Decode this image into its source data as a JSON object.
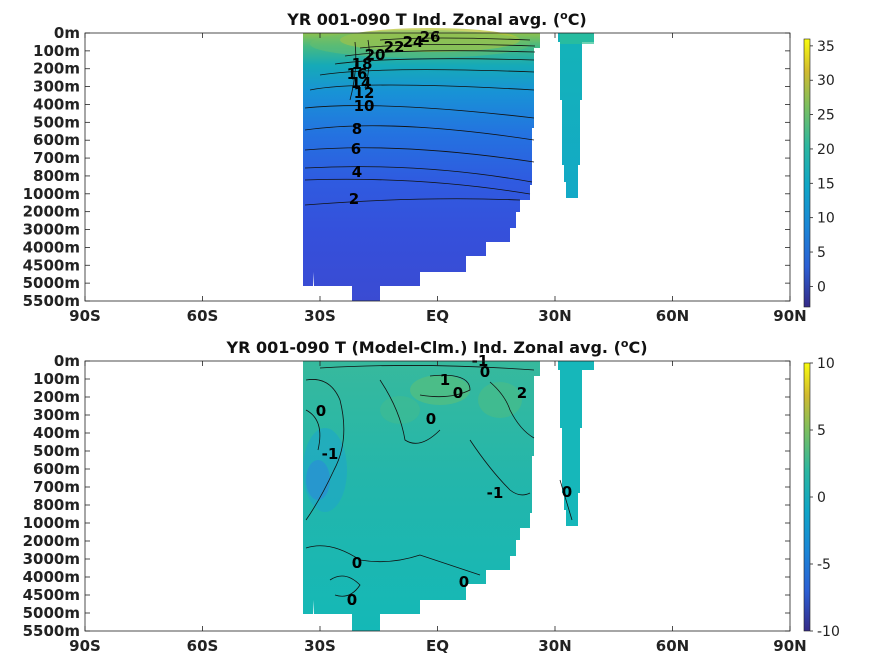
{
  "chart_data": [
    {
      "type": "heatmap",
      "title_main": "YR 001-090 T Ind. Zonal avg. (",
      "title_sup": "o",
      "title_end": "C)",
      "y_ticks": [
        "0m",
        "100m",
        "200m",
        "300m",
        "400m",
        "500m",
        "600m",
        "700m",
        "800m",
        "1000m",
        "2000m",
        "3000m",
        "4000m",
        "4500m",
        "5000m",
        "5500m"
      ],
      "x_ticks": [
        "90S",
        "60S",
        "30S",
        "EQ",
        "30N",
        "60N",
        "90N"
      ],
      "colorbar": {
        "ticks": [
          "35",
          "30",
          "25",
          "20",
          "15",
          "10",
          "5",
          "0"
        ],
        "min": -3,
        "max": 36
      },
      "contour_labels": [
        "26",
        "24",
        "22",
        "20",
        "18",
        "16",
        "14",
        "12",
        "10",
        "8",
        "6",
        "4",
        "2"
      ],
      "grid": false
    },
    {
      "type": "heatmap",
      "title_main": "YR 001-090 T (Model-Clm.) Ind. Zonal avg. (",
      "title_sup": "o",
      "title_end": "C)",
      "y_ticks": [
        "0m",
        "100m",
        "200m",
        "300m",
        "400m",
        "500m",
        "600m",
        "700m",
        "800m",
        "1000m",
        "2000m",
        "3000m",
        "4000m",
        "4500m",
        "5000m",
        "5500m"
      ],
      "x_ticks": [
        "90S",
        "60S",
        "30S",
        "EQ",
        "30N",
        "60N",
        "90N"
      ],
      "colorbar": {
        "ticks": [
          "10",
          "5",
          "0",
          "-5",
          "-10"
        ],
        "min": -10,
        "max": 10
      },
      "contour_labels": [
        "-1",
        "0",
        "1",
        "0",
        "2",
        "0",
        "0",
        "-1",
        "-1",
        "0",
        "0",
        "0",
        "0"
      ],
      "grid": false
    }
  ],
  "colors": {
    "axis": "#222222",
    "contour": "#111111",
    "land": "#ffffff"
  }
}
